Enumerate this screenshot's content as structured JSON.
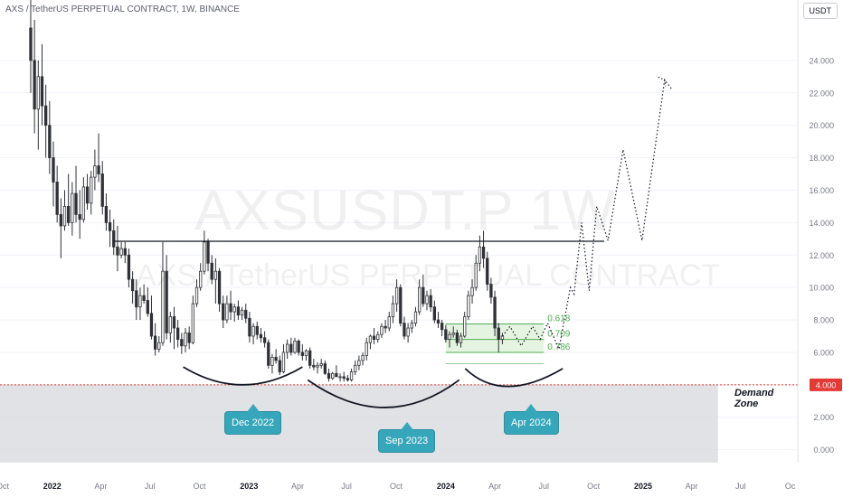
{
  "header": {
    "symbol_title": "AXS / TetherUS PERPETUAL CONTRACT, 1W, BINANCE",
    "currency_button": "USDT"
  },
  "watermark": {
    "ticker": "AXSUSDT.P  1W",
    "name": "AXS / TetherUS PERPETUAL CONTRACT"
  },
  "annotations": {
    "demand_zone_line1": "Demand",
    "demand_zone_line2": "Zone",
    "callouts": [
      "Dec 2022",
      "Sep 2023",
      "Apr 2024"
    ]
  },
  "colors": {
    "up_candle": "#ffffff",
    "down_candle": "#2f3136",
    "wick": "#2f3136",
    "demand_zone": "#d7d8dc",
    "support_line": "#e53935",
    "callout": "#36a6ba",
    "fib_fill": "#dff0da",
    "fib_line": "#4caf50",
    "fib_label": "#4caf50"
  },
  "chart_data": {
    "type": "candlestick",
    "timeframe": "1W",
    "y_axis": {
      "ticks": [
        0,
        2,
        4,
        6,
        8,
        10,
        12,
        14,
        16,
        18,
        20,
        22,
        24
      ],
      "tick_labels": [
        "0.000",
        "2.000",
        "4.000",
        "6.000",
        "8.000",
        "10.000",
        "12.000",
        "14.000",
        "16.000",
        "18.000",
        "20.000",
        "22.000",
        "24.000"
      ],
      "ylim": [
        -0.8,
        26.5
      ]
    },
    "x_axis": {
      "labels": [
        "Oct",
        "2022",
        "Apr",
        "Jul",
        "Oct",
        "2023",
        "Apr",
        "Jul",
        "Oct",
        "2024",
        "Apr",
        "Jul",
        "Oct",
        "2025",
        "Apr",
        "Jul",
        "Oc"
      ],
      "bold": [
        "2022",
        "2023",
        "2024",
        "2025"
      ],
      "xlim": [
        "2021-09-26",
        "2025-10-15"
      ]
    },
    "last_price_label": "4.000",
    "candles": [
      [
        "2021-11-22",
        26.0,
        28.0,
        22.0,
        24.0
      ],
      [
        "2021-11-29",
        24.0,
        26.5,
        19.5,
        21.0
      ],
      [
        "2021-12-06",
        21.0,
        24.0,
        18.5,
        23.0
      ],
      [
        "2021-12-13",
        23.0,
        25.0,
        20.0,
        21.2
      ],
      [
        "2021-12-20",
        21.2,
        22.5,
        18.0,
        20.0
      ],
      [
        "2021-12-27",
        20.0,
        21.5,
        17.0,
        18.0
      ],
      [
        "2022-01-03",
        18.0,
        19.0,
        15.0,
        16.5
      ],
      [
        "2022-01-10",
        16.5,
        17.5,
        14.0,
        14.5
      ],
      [
        "2022-01-17",
        14.5,
        15.5,
        11.8,
        13.8
      ],
      [
        "2022-01-24",
        13.8,
        16.0,
        13.5,
        15.0
      ],
      [
        "2022-01-31",
        15.0,
        17.0,
        13.8,
        14.0
      ],
      [
        "2022-02-07",
        14.0,
        16.5,
        13.2,
        15.8
      ],
      [
        "2022-02-14",
        15.8,
        17.5,
        14.0,
        14.5
      ],
      [
        "2022-02-21",
        14.5,
        16.0,
        13.0,
        14.2
      ],
      [
        "2022-02-28",
        14.2,
        16.8,
        14.0,
        16.2
      ],
      [
        "2022-03-07",
        16.2,
        17.0,
        14.8,
        15.2
      ],
      [
        "2022-03-14",
        15.2,
        17.2,
        14.5,
        16.8
      ],
      [
        "2022-03-21",
        16.8,
        18.5,
        16.0,
        17.5
      ],
      [
        "2022-03-28",
        17.5,
        19.5,
        16.5,
        17.0
      ],
      [
        "2022-04-04",
        17.0,
        17.8,
        14.5,
        15.0
      ],
      [
        "2022-04-11",
        15.0,
        15.8,
        13.5,
        14.0
      ],
      [
        "2022-04-18",
        14.0,
        14.8,
        12.5,
        13.5
      ],
      [
        "2022-04-25",
        13.5,
        14.2,
        12.0,
        12.5
      ],
      [
        "2022-05-02",
        12.5,
        13.8,
        11.0,
        12.0
      ],
      [
        "2022-05-09",
        12.0,
        12.8,
        11.8,
        12.4
      ],
      [
        "2022-05-16",
        12.4,
        12.8,
        11.5,
        12.0
      ],
      [
        "2022-05-23",
        12.0,
        12.4,
        10.0,
        10.5
      ],
      [
        "2022-05-30",
        10.5,
        11.0,
        9.0,
        9.8
      ],
      [
        "2022-06-06",
        9.8,
        10.5,
        8.0,
        8.8
      ],
      [
        "2022-06-13",
        8.8,
        10.0,
        8.0,
        9.5
      ],
      [
        "2022-06-20",
        9.5,
        10.2,
        9.0,
        9.2
      ],
      [
        "2022-06-27",
        9.2,
        10.0,
        8.2,
        8.4
      ],
      [
        "2022-07-04",
        8.4,
        9.5,
        6.8,
        7.0
      ],
      [
        "2022-07-11",
        7.0,
        7.8,
        5.8,
        6.2
      ],
      [
        "2022-07-18",
        6.2,
        7.0,
        6.0,
        6.6
      ],
      [
        "2022-07-25",
        6.6,
        12.8,
        6.4,
        11.0
      ],
      [
        "2022-08-01",
        11.0,
        12.0,
        6.8,
        7.2
      ],
      [
        "2022-08-08",
        7.2,
        8.5,
        6.6,
        8.2
      ],
      [
        "2022-08-15",
        8.2,
        8.8,
        6.2,
        7.5
      ],
      [
        "2022-08-22",
        7.5,
        8.0,
        6.3,
        6.8
      ],
      [
        "2022-08-29",
        6.8,
        7.2,
        5.9,
        6.4
      ],
      [
        "2022-09-05",
        6.4,
        7.5,
        6.0,
        7.2
      ],
      [
        "2022-09-12",
        7.2,
        7.6,
        6.2,
        6.6
      ],
      [
        "2022-09-19",
        6.6,
        9.5,
        6.5,
        9.0
      ],
      [
        "2022-09-26",
        9.0,
        10.5,
        8.8,
        10.0
      ],
      [
        "2022-10-03",
        10.0,
        11.5,
        9.8,
        11.0
      ],
      [
        "2022-10-10",
        11.0,
        13.5,
        10.8,
        12.8
      ],
      [
        "2022-10-17",
        12.8,
        13.0,
        11.0,
        11.5
      ],
      [
        "2022-10-24",
        11.5,
        12.0,
        10.2,
        10.5
      ],
      [
        "2022-10-31",
        10.5,
        11.8,
        9.0,
        11.0
      ],
      [
        "2022-11-07",
        11.0,
        11.2,
        8.5,
        9.0
      ],
      [
        "2022-11-14",
        9.0,
        9.5,
        7.5,
        8.0
      ],
      [
        "2022-11-21",
        8.0,
        9.5,
        7.8,
        9.0
      ],
      [
        "2022-11-28",
        9.0,
        9.8,
        8.0,
        8.5
      ],
      [
        "2022-12-05",
        8.5,
        9.0,
        7.9,
        8.8
      ],
      [
        "2022-12-12",
        8.8,
        9.2,
        8.0,
        8.3
      ],
      [
        "2022-12-19",
        8.3,
        8.8,
        8.0,
        8.6
      ],
      [
        "2022-12-26",
        8.6,
        9.0,
        7.8,
        8.1
      ],
      [
        "2023-01-02",
        8.1,
        8.5,
        6.6,
        7.0
      ],
      [
        "2023-01-09",
        7.0,
        7.8,
        6.5,
        7.6
      ],
      [
        "2023-01-16",
        7.6,
        7.9,
        6.8,
        7.1
      ],
      [
        "2023-01-23",
        7.1,
        7.5,
        6.6,
        6.9
      ],
      [
        "2023-01-30",
        6.9,
        7.3,
        6.3,
        6.6
      ],
      [
        "2023-02-06",
        6.6,
        6.8,
        5.0,
        5.2
      ],
      [
        "2023-02-13",
        5.2,
        5.9,
        4.7,
        5.7
      ],
      [
        "2023-02-20",
        5.7,
        6.2,
        5.3,
        5.5
      ],
      [
        "2023-02-27",
        5.5,
        5.8,
        4.6,
        4.8
      ],
      [
        "2023-03-06",
        4.8,
        6.5,
        4.7,
        6.0
      ],
      [
        "2023-03-13",
        6.0,
        6.8,
        5.6,
        6.5
      ],
      [
        "2023-03-20",
        6.5,
        6.9,
        5.8,
        6.0
      ],
      [
        "2023-03-27",
        6.0,
        6.9,
        5.9,
        6.7
      ],
      [
        "2023-04-03",
        6.7,
        6.8,
        5.8,
        6.0
      ],
      [
        "2023-04-10",
        6.0,
        6.5,
        5.5,
        5.8
      ],
      [
        "2023-04-17",
        5.8,
        6.2,
        5.5,
        6.1
      ],
      [
        "2023-04-24",
        6.1,
        6.3,
        5.0,
        5.2
      ],
      [
        "2023-05-01",
        5.2,
        5.6,
        4.9,
        5.1
      ],
      [
        "2023-05-08",
        5.1,
        5.4,
        4.7,
        5.2
      ],
      [
        "2023-05-15",
        5.2,
        5.6,
        5.0,
        5.3
      ],
      [
        "2023-05-22",
        5.3,
        5.5,
        4.6,
        4.7
      ],
      [
        "2023-05-29",
        4.7,
        5.0,
        4.2,
        4.4
      ],
      [
        "2023-06-05",
        4.4,
        4.8,
        4.3,
        4.7
      ],
      [
        "2023-06-12",
        4.7,
        5.2,
        4.5,
        4.5
      ],
      [
        "2023-06-19",
        4.5,
        4.7,
        4.2,
        4.5
      ],
      [
        "2023-06-26",
        4.5,
        4.8,
        4.2,
        4.4
      ],
      [
        "2023-07-03",
        4.4,
        4.6,
        4.2,
        4.3
      ],
      [
        "2023-07-10",
        4.3,
        5.0,
        4.2,
        4.8
      ],
      [
        "2023-07-17",
        4.8,
        5.5,
        4.6,
        5.2
      ],
      [
        "2023-07-24",
        5.2,
        5.8,
        4.9,
        5.5
      ],
      [
        "2023-07-31",
        5.5,
        6.0,
        5.2,
        5.8
      ],
      [
        "2023-08-07",
        5.8,
        6.9,
        5.5,
        6.6
      ],
      [
        "2023-08-14",
        6.6,
        7.1,
        6.2,
        7.0
      ],
      [
        "2023-08-21",
        7.0,
        7.5,
        6.5,
        6.8
      ],
      [
        "2023-08-28",
        6.8,
        7.3,
        6.6,
        7.1
      ],
      [
        "2023-09-04",
        7.1,
        7.8,
        6.9,
        7.6
      ],
      [
        "2023-09-11",
        7.6,
        8.0,
        7.2,
        7.5
      ],
      [
        "2023-09-18",
        7.5,
        8.5,
        7.3,
        8.2
      ],
      [
        "2023-09-25",
        8.2,
        9.5,
        7.8,
        9.0
      ],
      [
        "2023-10-02",
        9.0,
        10.5,
        8.5,
        10.0
      ],
      [
        "2023-10-09",
        10.0,
        10.2,
        7.6,
        7.8
      ],
      [
        "2023-10-16",
        7.8,
        8.2,
        6.8,
        7.0
      ],
      [
        "2023-10-23",
        7.0,
        7.8,
        6.6,
        7.5
      ],
      [
        "2023-10-30",
        7.5,
        8.0,
        7.2,
        7.8
      ],
      [
        "2023-11-06",
        7.8,
        8.8,
        7.6,
        8.5
      ],
      [
        "2023-11-13",
        8.5,
        10.5,
        8.3,
        10.0
      ],
      [
        "2023-11-20",
        10.0,
        10.8,
        8.8,
        9.0
      ],
      [
        "2023-11-27",
        9.0,
        9.8,
        8.6,
        9.5
      ],
      [
        "2023-12-04",
        9.5,
        9.9,
        8.5,
        8.8
      ],
      [
        "2023-12-11",
        8.8,
        9.2,
        7.8,
        8.0
      ],
      [
        "2023-12-18",
        8.0,
        8.5,
        7.5,
        7.8
      ],
      [
        "2023-12-25",
        7.8,
        8.0,
        7.0,
        7.4
      ],
      [
        "2024-01-01",
        7.4,
        7.7,
        6.6,
        6.8
      ],
      [
        "2024-01-08",
        6.8,
        7.3,
        6.3,
        7.1
      ],
      [
        "2024-01-15",
        7.1,
        7.6,
        6.9,
        7.2
      ],
      [
        "2024-01-22",
        7.2,
        7.4,
        6.4,
        6.6
      ],
      [
        "2024-01-29",
        6.6,
        7.2,
        6.3,
        7.0
      ],
      [
        "2024-02-05",
        7.0,
        8.5,
        6.9,
        8.2
      ],
      [
        "2024-02-12",
        8.2,
        9.8,
        8.0,
        9.5
      ],
      [
        "2024-02-19",
        9.5,
        10.5,
        9.0,
        10.0
      ],
      [
        "2024-02-26",
        10.0,
        12.0,
        9.8,
        11.5
      ],
      [
        "2024-03-04",
        11.5,
        13.2,
        11.0,
        12.5
      ],
      [
        "2024-03-11",
        12.5,
        13.5,
        11.2,
        11.8
      ],
      [
        "2024-03-18",
        11.8,
        12.2,
        9.8,
        10.2
      ],
      [
        "2024-03-25",
        10.2,
        10.6,
        9.0,
        9.4
      ],
      [
        "2024-04-01",
        9.4,
        9.8,
        7.0,
        7.5
      ],
      [
        "2024-04-08",
        7.5,
        7.8,
        6.0,
        6.8
      ],
      [
        "2024-04-15",
        6.8,
        7.2,
        6.5,
        7.0
      ]
    ],
    "resistance_line": {
      "y": 12.85,
      "from": "2022-04-25",
      "to": "2024-10-21"
    },
    "demand_zone": {
      "from_y": -0.8,
      "to_y": 4.0,
      "from": "2021-09-26",
      "to": "2025-05-20"
    },
    "support_line": {
      "y": 4.0
    },
    "fib_retracement": {
      "from": "2024-01-01",
      "to": "2024-07-01",
      "levels": [
        {
          "label": "0.618",
          "value": 7.75
        },
        {
          "label": "0.709",
          "value": 6.8
        },
        {
          "label": "0.786",
          "value": 6.0
        }
      ]
    },
    "projection_path": [
      [
        "2024-04-15",
        7.0
      ],
      [
        "2024-04-29",
        7.6
      ],
      [
        "2024-05-20",
        6.4
      ],
      [
        "2024-06-10",
        7.6
      ],
      [
        "2024-06-24",
        6.8
      ],
      [
        "2024-07-08",
        7.8
      ],
      [
        "2024-07-29",
        6.2
      ],
      [
        "2024-08-19",
        10.0
      ],
      [
        "2024-08-26",
        9.6
      ],
      [
        "2024-09-09",
        14.0
      ],
      [
        "2024-09-23",
        9.8
      ],
      [
        "2024-10-07",
        15.0
      ],
      [
        "2024-10-28",
        12.9
      ],
      [
        "2024-11-25",
        18.5
      ],
      [
        "2024-12-30",
        12.9
      ],
      [
        "2025-02-10",
        22.8
      ],
      [
        "2025-02-24",
        22.2
      ]
    ],
    "bottom_arcs": [
      {
        "from": "2022-09-01",
        "mid": "2022-12-20",
        "to": "2023-04-10",
        "top_y": 5.1,
        "bottom_y": 4.0
      },
      {
        "from": "2023-04-20",
        "mid": "2023-09-12",
        "to": "2024-01-26",
        "top_y": 4.3,
        "bottom_y": 2.6
      },
      {
        "from": "2024-02-06",
        "mid": "2024-04-15",
        "to": "2024-08-05",
        "top_y": 5.0,
        "bottom_y": 3.9
      }
    ]
  }
}
